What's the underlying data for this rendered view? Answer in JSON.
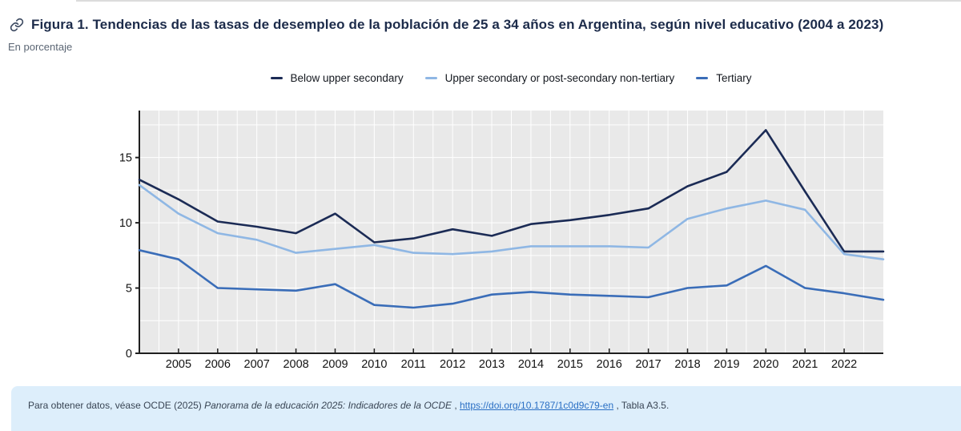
{
  "header": {
    "title": "Figura 1. Tendencias de las tasas de desempleo de la población de 25 a 34 años en Argentina, según nivel educativo (2004 a 2023)",
    "subtitle": "En porcentaje"
  },
  "colors": {
    "plot_background": "#e9e9e9",
    "gridline": "#ffffff",
    "axis": "#1f1f1f",
    "title_text": "#1c2b4a",
    "footer_background": "#ddeefb",
    "link": "#2a6fc4",
    "series_below_upper_secondary": "#1b2b55",
    "series_upper_secondary": "#8fb7e4",
    "series_tertiary": "#3a6db8"
  },
  "chart_data": {
    "type": "line",
    "title": "Tasas de desempleo de la población de 25 a 34 años en Argentina, según nivel educativo",
    "xlabel": "",
    "ylabel": "En porcentaje",
    "x": [
      2004,
      2005,
      2006,
      2007,
      2008,
      2009,
      2010,
      2011,
      2012,
      2013,
      2014,
      2015,
      2016,
      2017,
      2018,
      2019,
      2020,
      2021,
      2022,
      2023
    ],
    "series": [
      {
        "name": "Below upper secondary",
        "color": "#1b2b55",
        "values": [
          13.3,
          11.8,
          10.1,
          9.7,
          9.2,
          10.7,
          8.5,
          8.8,
          9.5,
          9.0,
          9.9,
          10.2,
          10.6,
          11.1,
          12.8,
          13.9,
          17.1,
          12.4,
          7.8,
          7.8
        ]
      },
      {
        "name": "Upper secondary or post-secondary non-tertiary",
        "color": "#8fb7e4",
        "values": [
          12.9,
          10.7,
          9.2,
          8.7,
          7.7,
          8.0,
          8.3,
          7.7,
          7.6,
          7.8,
          8.2,
          8.2,
          8.2,
          8.1,
          10.3,
          11.1,
          11.7,
          11.0,
          7.6,
          7.2
        ]
      },
      {
        "name": "Tertiary",
        "color": "#3a6db8",
        "values": [
          7.9,
          7.2,
          5.0,
          4.9,
          4.8,
          5.3,
          3.7,
          3.5,
          3.8,
          4.5,
          4.7,
          4.5,
          4.4,
          4.3,
          5.0,
          5.2,
          6.7,
          5.0,
          4.6,
          4.1
        ]
      }
    ],
    "xlim": [
      2004,
      2023
    ],
    "ylim": [
      0,
      18.6
    ],
    "xticks": [
      2005,
      2006,
      2007,
      2008,
      2009,
      2010,
      2011,
      2012,
      2013,
      2014,
      2015,
      2016,
      2017,
      2018,
      2019,
      2020,
      2021,
      2022
    ],
    "yticks": [
      0,
      5,
      10,
      15
    ],
    "x_minor_grid_step": 0.5,
    "y_minor_grid_step": 2.5,
    "grid": "minor white gridlines on light-gray plot area",
    "legend_position": "top"
  },
  "footer": {
    "text_prefix": "Para obtener datos, véase OCDE (2025) ",
    "source_italic": "Panorama de la educación 2025: Indicadores de la OCDE",
    "separator": " , ",
    "link_text": "https://doi.org/10.1787/1c0d9c79-en",
    "suffix": " , Tabla A3.5."
  }
}
